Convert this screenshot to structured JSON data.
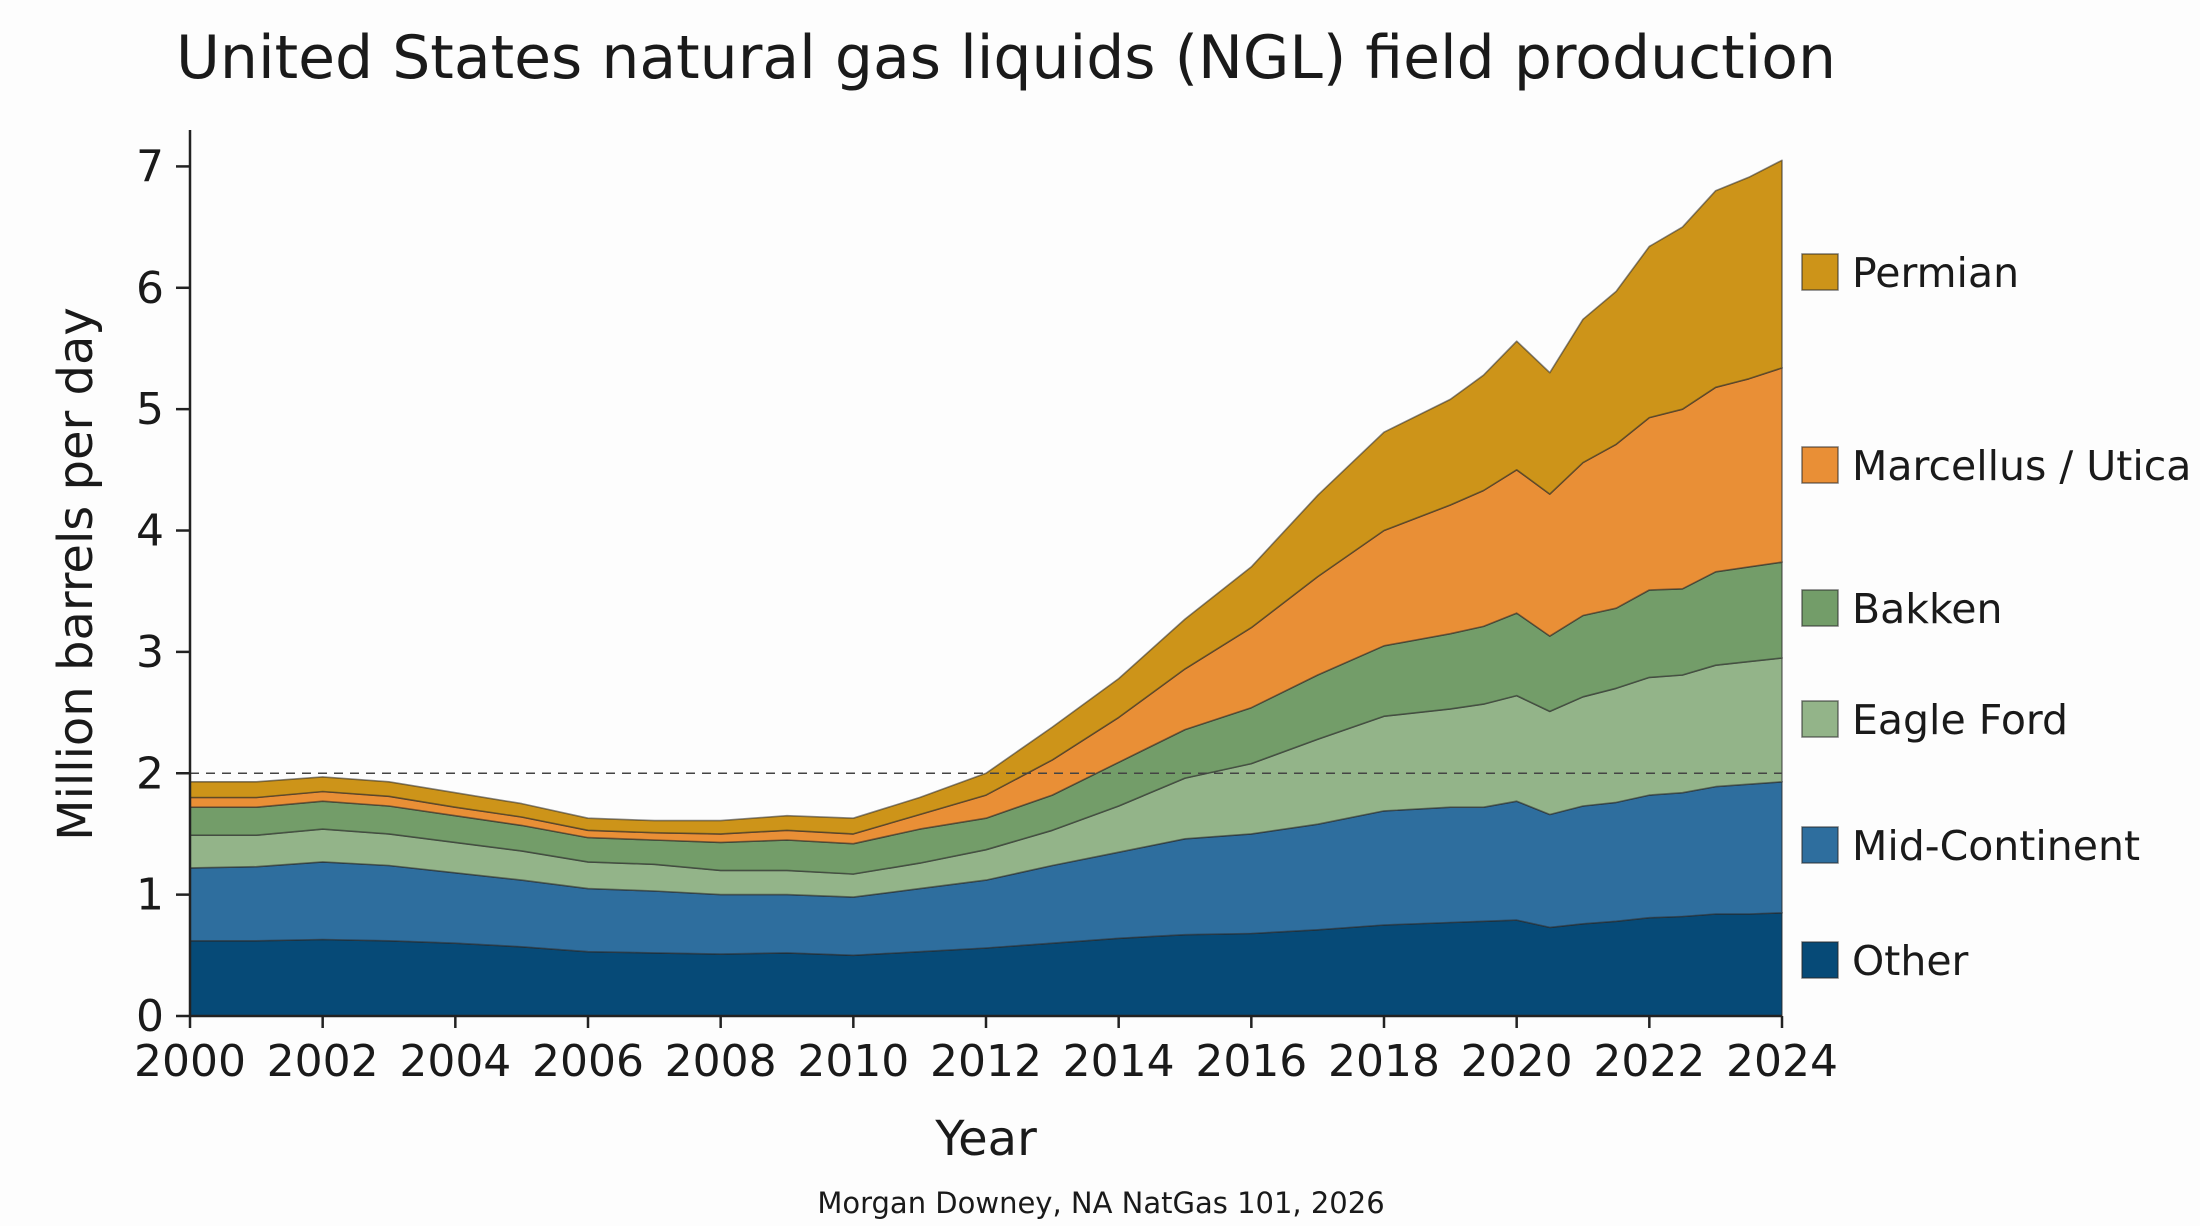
{
  "chart_data": {
    "type": "area",
    "stacked": true,
    "title": "United States natural gas liquids (NGL) field production",
    "xlabel": "Year",
    "ylabel": "Million barrels per day",
    "source": "Morgan Downey, NA NatGas 101, 2026",
    "xlim": [
      2000,
      2024
    ],
    "ylim": [
      0,
      7.3
    ],
    "x_ticks": [
      "2000",
      "2002",
      "2004",
      "2006",
      "2008",
      "2010",
      "2012",
      "2014",
      "2016",
      "2018",
      "2020",
      "2022",
      "2024"
    ],
    "y_ticks": [
      "0",
      "1",
      "2",
      "3",
      "4",
      "5",
      "6",
      "7"
    ],
    "reference_line": {
      "y": 2,
      "style": "dashed"
    },
    "grid": false,
    "legend_position": "right",
    "x": [
      2000,
      2001,
      2002,
      2003,
      2004,
      2005,
      2006,
      2007,
      2008,
      2009,
      2010,
      2011,
      2012,
      2013,
      2014,
      2015,
      2016,
      2017,
      2018,
      2019,
      2019.5,
      2020,
      2020.5,
      2021,
      2021.5,
      2022,
      2022.5,
      2023,
      2023.5,
      2024
    ],
    "series": [
      {
        "name": "Other",
        "color": "#064a77",
        "values": [
          0.62,
          0.62,
          0.63,
          0.62,
          0.6,
          0.57,
          0.53,
          0.52,
          0.51,
          0.52,
          0.5,
          0.53,
          0.56,
          0.6,
          0.64,
          0.67,
          0.68,
          0.71,
          0.75,
          0.77,
          0.78,
          0.79,
          0.73,
          0.76,
          0.78,
          0.81,
          0.82,
          0.84,
          0.84,
          0.85
        ]
      },
      {
        "name": "Mid-Continent",
        "color": "#2e6e9e",
        "values": [
          0.6,
          0.61,
          0.64,
          0.62,
          0.58,
          0.55,
          0.52,
          0.51,
          0.49,
          0.48,
          0.48,
          0.52,
          0.56,
          0.64,
          0.71,
          0.79,
          0.82,
          0.87,
          0.94,
          0.95,
          0.94,
          0.98,
          0.93,
          0.97,
          0.98,
          1.01,
          1.02,
          1.05,
          1.07,
          1.08
        ]
      },
      {
        "name": "Eagle Ford",
        "color": "#93b489",
        "values": [
          0.27,
          0.26,
          0.27,
          0.26,
          0.25,
          0.24,
          0.22,
          0.22,
          0.2,
          0.2,
          0.19,
          0.21,
          0.25,
          0.29,
          0.38,
          0.5,
          0.58,
          0.7,
          0.78,
          0.81,
          0.85,
          0.87,
          0.85,
          0.9,
          0.94,
          0.97,
          0.97,
          1.0,
          1.01,
          1.02
        ]
      },
      {
        "name": "Bakken",
        "color": "#739d69",
        "values": [
          0.23,
          0.23,
          0.23,
          0.23,
          0.22,
          0.21,
          0.2,
          0.2,
          0.23,
          0.25,
          0.25,
          0.28,
          0.26,
          0.29,
          0.36,
          0.4,
          0.46,
          0.53,
          0.58,
          0.62,
          0.64,
          0.68,
          0.62,
          0.67,
          0.66,
          0.72,
          0.71,
          0.77,
          0.78,
          0.79
        ]
      },
      {
        "name": "Marcellus / Utica",
        "color": "#e98f36",
        "values": [
          0.08,
          0.08,
          0.08,
          0.08,
          0.07,
          0.07,
          0.06,
          0.06,
          0.07,
          0.08,
          0.08,
          0.12,
          0.19,
          0.29,
          0.37,
          0.5,
          0.66,
          0.81,
          0.95,
          1.06,
          1.12,
          1.18,
          1.17,
          1.26,
          1.35,
          1.42,
          1.48,
          1.52,
          1.55,
          1.6
        ]
      },
      {
        "name": "Permian",
        "color": "#cd9419",
        "values": [
          0.13,
          0.13,
          0.12,
          0.12,
          0.12,
          0.11,
          0.1,
          0.1,
          0.11,
          0.12,
          0.13,
          0.14,
          0.18,
          0.27,
          0.32,
          0.41,
          0.5,
          0.67,
          0.81,
          0.87,
          0.95,
          1.06,
          1.0,
          1.18,
          1.26,
          1.41,
          1.5,
          1.62,
          1.66,
          1.71
        ]
      }
    ]
  }
}
